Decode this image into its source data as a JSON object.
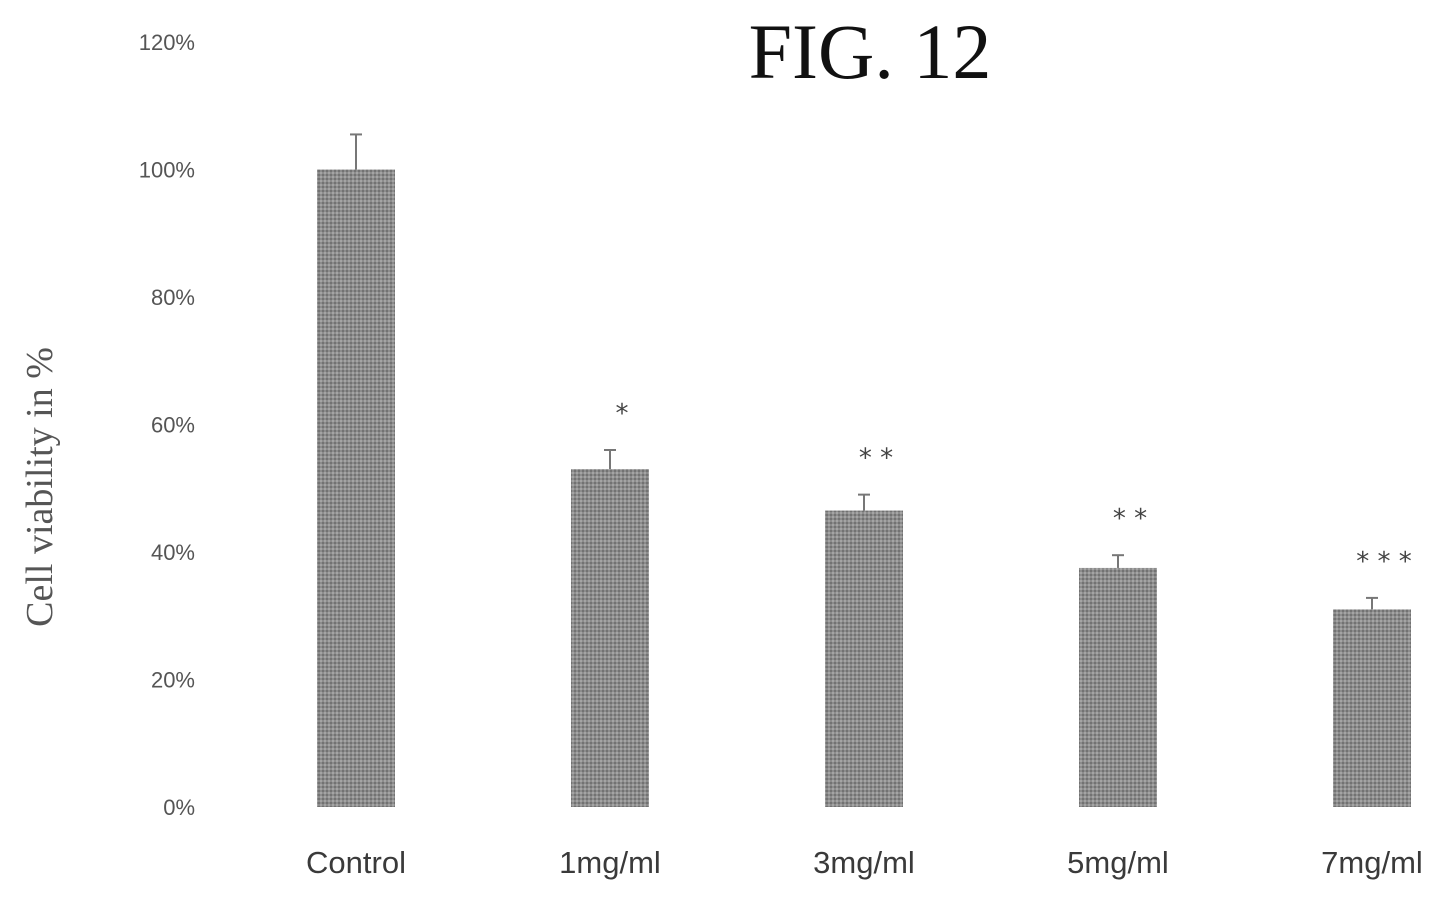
{
  "chart_data": {
    "type": "bar",
    "title": "FIG. 12",
    "xlabel": "",
    "ylabel": "Cell viability in %",
    "categories": [
      "Control",
      "1mg/ml",
      "3mg/ml",
      "5mg/ml",
      "7mg/ml"
    ],
    "values": [
      100,
      53,
      46.5,
      37.5,
      31
    ],
    "errors": [
      5.5,
      3,
      2.5,
      2,
      1.8
    ],
    "significance": [
      "",
      "*",
      "* *",
      "* *",
      "* * *"
    ],
    "ylim": [
      0,
      120
    ],
    "yticks": [
      0,
      20,
      40,
      60,
      80,
      100,
      120
    ],
    "ytick_labels": [
      "0%",
      "20%",
      "40%",
      "60%",
      "80%",
      "100%",
      "120%"
    ],
    "grid": false,
    "legend": "none",
    "colors": {
      "bar": "#8c8c8c",
      "error_bar": "#777777"
    }
  }
}
